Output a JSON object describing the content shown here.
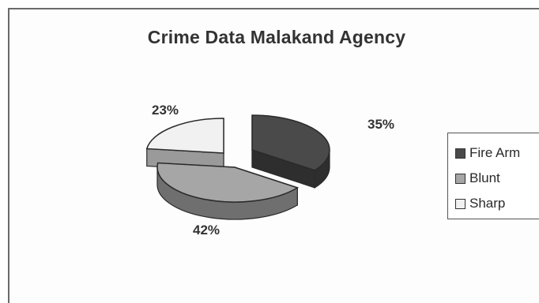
{
  "chart_data": {
    "type": "pie",
    "title": "Crime Data Malakand Agency",
    "categories": [
      "Fire Arm",
      "Blunt",
      "Sharp"
    ],
    "values": [
      35,
      42,
      23
    ],
    "data_labels": [
      "35%",
      "42%",
      "23%"
    ],
    "style": "3d-exploded",
    "legend_position": "right",
    "colors": {
      "Fire Arm": "#4a4a4a",
      "Blunt": "#a6a6a6",
      "Sharp": "#f1f1f1"
    }
  }
}
